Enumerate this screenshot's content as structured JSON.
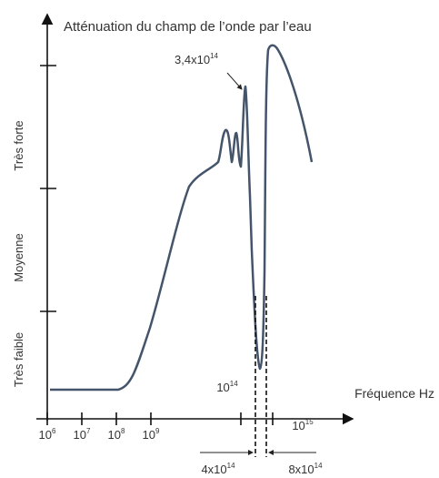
{
  "title": "Atténuation du champ de l’onde par l’eau",
  "x_axis": {
    "label": "Fréquence Hz",
    "ticks": [
      {
        "base": "10",
        "exp": "6"
      },
      {
        "base": "10",
        "exp": "7"
      },
      {
        "base": "10",
        "exp": "8"
      },
      {
        "base": "10",
        "exp": "9"
      }
    ],
    "tick_14": {
      "base": "10",
      "exp": "14"
    },
    "tick_15": {
      "base": "10",
      "exp": "15"
    }
  },
  "y_axis": {
    "levels": [
      "Très faible",
      "Moyenne",
      "Très forte"
    ]
  },
  "annotations": {
    "peak": {
      "text": "3,4x10",
      "exp": "14"
    },
    "low": {
      "text": "4x10",
      "exp": "14"
    },
    "high": {
      "text": "8x10",
      "exp": "14"
    }
  }
}
